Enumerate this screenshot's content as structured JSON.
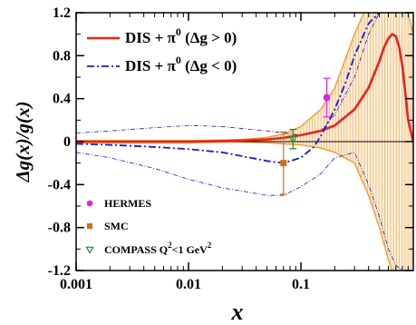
{
  "chart_data": {
    "type": "line",
    "x_scale": "log",
    "xlim": [
      0.001,
      1
    ],
    "ylim": [
      -1.2,
      1.2
    ],
    "xlabel": "x",
    "ylabel": "Δg(x)/g(x)",
    "x_ticks": [
      0.001,
      0.01,
      0.1
    ],
    "x_tick_labels": [
      "0.001",
      "0.01",
      "0.1"
    ],
    "y_ticks": [
      -1.2,
      -0.8,
      -0.4,
      0,
      0.4,
      0.8,
      1.2
    ],
    "y_tick_labels": [
      "-1.2",
      "-0.8",
      "-0.4",
      "0",
      "0.4",
      "0.8",
      "1.2"
    ],
    "grid": false,
    "legend_lines": [
      {
        "label_main": "DIS + π",
        "label_sup": "0",
        "label_tail": " (Δg > 0)",
        "color": "#e8231f",
        "style": "solid"
      },
      {
        "label_main": "DIS + π",
        "label_sup": "0",
        "label_tail": " (Δg < 0)",
        "color": "#1a1acc",
        "style": "dashdot"
      }
    ],
    "legend_points": [
      {
        "label": "HERMES",
        "label_sup": "",
        "label_tail": "",
        "color": "#e020e0",
        "marker": "circle"
      },
      {
        "label": "SMC",
        "label_sup": "",
        "label_tail": "",
        "color": "#c87218",
        "marker": "square"
      },
      {
        "label": "COMPASS Q",
        "label_sup": "2",
        "label_tail": "<1 GeV",
        "label_sup2": "2",
        "color": "#2a8a2a",
        "marker": "triangle-down"
      }
    ],
    "series": [
      {
        "name": "DIS + π0 (Δg > 0)",
        "style": "solid",
        "color": "#e8231f",
        "x": [
          0.001,
          0.002,
          0.005,
          0.01,
          0.02,
          0.03,
          0.05,
          0.07,
          0.1,
          0.15,
          0.2,
          0.3,
          0.4,
          0.5,
          0.55,
          0.6,
          0.65,
          0.7,
          0.75,
          0.8,
          0.85,
          0.9,
          1.0
        ],
        "y": [
          0,
          0,
          0,
          0,
          0.005,
          0.01,
          0.02,
          0.035,
          0.06,
          0.1,
          0.15,
          0.3,
          0.5,
          0.75,
          0.88,
          0.96,
          1.0,
          0.98,
          0.88,
          0.7,
          0.45,
          0.2,
          0
        ]
      },
      {
        "name": "DIS + π0 (Δg < 0)",
        "style": "dashdot",
        "color": "#1a1acc",
        "x": [
          0.001,
          0.002,
          0.005,
          0.01,
          0.02,
          0.05,
          0.07,
          0.1,
          0.13,
          0.15,
          0.2,
          0.25,
          0.3,
          0.4,
          0.5,
          0.55,
          0.6
        ],
        "y": [
          -0.02,
          -0.03,
          -0.05,
          -0.07,
          -0.1,
          -0.18,
          -0.2,
          -0.15,
          -0.05,
          0.05,
          0.3,
          0.55,
          0.8,
          1.1,
          1.2,
          1.22,
          1.25
        ]
      }
    ],
    "bands": [
      {
        "name": "Δg > 0 uncertainty",
        "color": "#f39a2c",
        "x": [
          0.001,
          0.005,
          0.01,
          0.02,
          0.03,
          0.05,
          0.07,
          0.1,
          0.15,
          0.2,
          0.3,
          0.4,
          0.5,
          0.6,
          0.7,
          0.8,
          0.9,
          1.0
        ],
        "upper": [
          0.01,
          0.01,
          0.01,
          0.015,
          0.02,
          0.04,
          0.07,
          0.14,
          0.3,
          0.5,
          1.0,
          1.3,
          1.4,
          1.4,
          1.35,
          1.3,
          1.2,
          1.0
        ],
        "lower": [
          -0.01,
          -0.01,
          -0.01,
          -0.005,
          -0.005,
          -0.01,
          -0.02,
          -0.03,
          -0.06,
          -0.1,
          -0.2,
          -0.5,
          -0.8,
          -1.1,
          -1.3,
          -1.4,
          -1.4,
          -1.3
        ]
      },
      {
        "name": "Δg < 0 uncertainty",
        "color": "#1a1acc",
        "x": [
          0.001,
          0.002,
          0.005,
          0.01,
          0.02,
          0.05,
          0.07,
          0.1,
          0.15,
          0.2,
          0.3,
          0.4,
          0.5,
          0.6,
          0.7,
          0.8,
          0.9
        ],
        "upper": [
          0.08,
          0.1,
          0.13,
          0.15,
          0.14,
          0.1,
          0.08,
          0.06,
          0.1,
          0.25,
          0.6,
          1.0,
          1.2,
          1.2,
          1.2,
          1.2,
          1.2
        ],
        "lower": [
          -0.1,
          -0.15,
          -0.25,
          -0.35,
          -0.43,
          -0.5,
          -0.5,
          -0.42,
          -0.3,
          -0.15,
          -0.1,
          -0.4,
          -0.7,
          -1.0,
          -1.15,
          -1.2,
          -1.2
        ]
      }
    ],
    "data_points": [
      {
        "name": "HERMES",
        "x": 0.17,
        "y": 0.41,
        "y_err_plus": 0.18,
        "y_err_minus": 0.18,
        "color": "#e020e0",
        "marker": "circle"
      },
      {
        "name": "SMC",
        "x": 0.07,
        "y": -0.2,
        "y_err_plus": 0.29,
        "y_err_minus": 0.29,
        "color": "#c87218",
        "marker": "square"
      },
      {
        "name": "COMPASS",
        "x": 0.085,
        "y": 0.024,
        "y_err_plus": 0.09,
        "y_err_minus": 0.09,
        "color": "#2a8a2a",
        "marker": "triangle-down"
      }
    ]
  }
}
